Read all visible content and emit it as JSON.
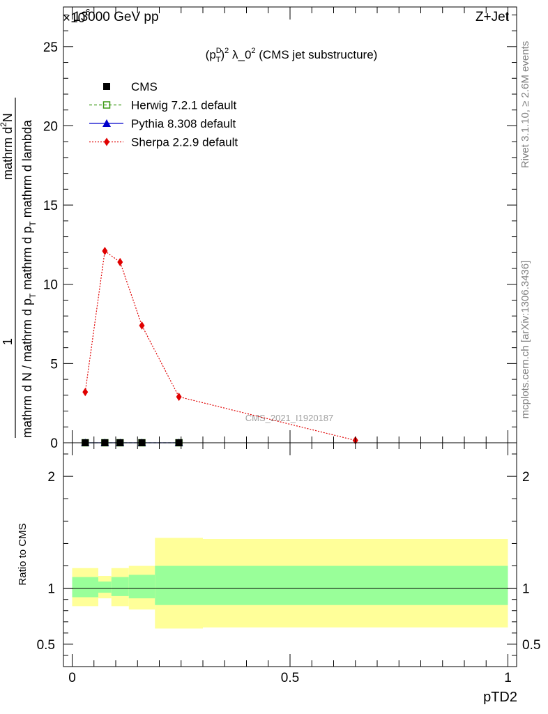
{
  "header": {
    "left": "13000 GeV pp",
    "right": "Z+Jet",
    "exponent": "×10",
    "exponent_power": "-6"
  },
  "side_text": {
    "rivet": "Rivet 3.1.10, ≥ 2.6M events",
    "mcplots": "mcplots.cern.ch [arXiv:1306.3436]"
  },
  "watermark": "CMS_2021_I1920187",
  "chart_data": [
    {
      "type": "line",
      "title_parts": {
        "pre": "(p",
        "sub": "T",
        "sup_D": "D",
        "sup2": "2",
        "post": " λ_0",
        "post_sup": "2",
        "tail": " (CMS jet substructure)"
      },
      "ylabel_parts": {
        "one": "1",
        "denominator": "mathrm d N / mathrm d p",
        "den_sub": "T",
        "den_tail": " mathrm d p",
        "den_sub2": "T",
        "den_tail2": " mathrm d lambda",
        "numerator": "mathrm d",
        "numerator_sup": "2",
        "numerator_tail": "N"
      },
      "ylim": [
        0,
        27.5
      ],
      "yticks": [
        0,
        5,
        10,
        15,
        20,
        25
      ],
      "ytick_labels": [
        "0",
        "5",
        "10",
        "15",
        "20",
        "25"
      ],
      "xlim": [
        -0.02,
        1.02
      ],
      "legend": [
        {
          "label": "CMS",
          "color": "#000000",
          "marker": "square"
        },
        {
          "label": "Herwig 7.2.1 default",
          "color": "#3c9a14",
          "marker": "open-square",
          "dash": "dashed"
        },
        {
          "label": "Pythia 8.308 default",
          "color": "#0000cc",
          "marker": "triangle",
          "dash": "solid"
        },
        {
          "label": "Sherpa 2.2.9 default",
          "color": "#e00000",
          "marker": "diamond",
          "dash": "dotted"
        }
      ],
      "series": [
        {
          "name": "CMS",
          "x": [
            0.03,
            0.075,
            0.11,
            0.16,
            0.245
          ],
          "y": [
            0,
            0,
            0,
            0,
            0
          ]
        },
        {
          "name": "Herwig 7.2.1 default",
          "x": [
            0.03,
            0.075,
            0.11,
            0.16,
            0.245
          ],
          "y": [
            0,
            0,
            0,
            0,
            0
          ]
        },
        {
          "name": "Pythia 8.308 default",
          "x": [
            0.03,
            0.075,
            0.11,
            0.16,
            0.245
          ],
          "y": [
            0,
            0,
            0,
            0,
            0
          ]
        },
        {
          "name": "Sherpa 2.2.9 default",
          "x": [
            0.03,
            0.075,
            0.11,
            0.16,
            0.245,
            0.65
          ],
          "y": [
            3.2,
            12.1,
            11.4,
            7.4,
            2.9,
            0.15
          ]
        }
      ]
    },
    {
      "type": "area",
      "ylabel": "Ratio to CMS",
      "xlabel": "pTD2",
      "ylim": [
        0.3,
        2.3
      ],
      "yticks": [
        0.5,
        1,
        2
      ],
      "ytick_labels": [
        "0.5",
        "1",
        "2"
      ],
      "xticks": [
        0,
        0.5,
        1
      ],
      "xtick_labels": [
        "0",
        "0.5",
        "1"
      ],
      "reference_line": 1,
      "bins": [
        {
          "x0": 0.0,
          "x1": 0.06,
          "stat_lo": 0.92,
          "stat_hi": 1.1,
          "tot_lo": 0.84,
          "tot_hi": 1.18
        },
        {
          "x0": 0.06,
          "x1": 0.09,
          "stat_lo": 0.96,
          "stat_hi": 1.06,
          "tot_lo": 0.91,
          "tot_hi": 1.11
        },
        {
          "x0": 0.09,
          "x1": 0.13,
          "stat_lo": 0.93,
          "stat_hi": 1.1,
          "tot_lo": 0.84,
          "tot_hi": 1.18
        },
        {
          "x0": 0.13,
          "x1": 0.19,
          "stat_lo": 0.91,
          "stat_hi": 1.12,
          "tot_lo": 0.81,
          "tot_hi": 1.2
        },
        {
          "x0": 0.19,
          "x1": 0.3,
          "stat_lo": 0.85,
          "stat_hi": 1.2,
          "tot_lo": 0.64,
          "tot_hi": 1.45
        },
        {
          "x0": 0.3,
          "x1": 1.0,
          "stat_lo": 0.85,
          "stat_hi": 1.2,
          "tot_lo": 0.65,
          "tot_hi": 1.44
        }
      ],
      "band_colors": {
        "stat": "#99ff99",
        "total": "#ffff99"
      }
    }
  ]
}
